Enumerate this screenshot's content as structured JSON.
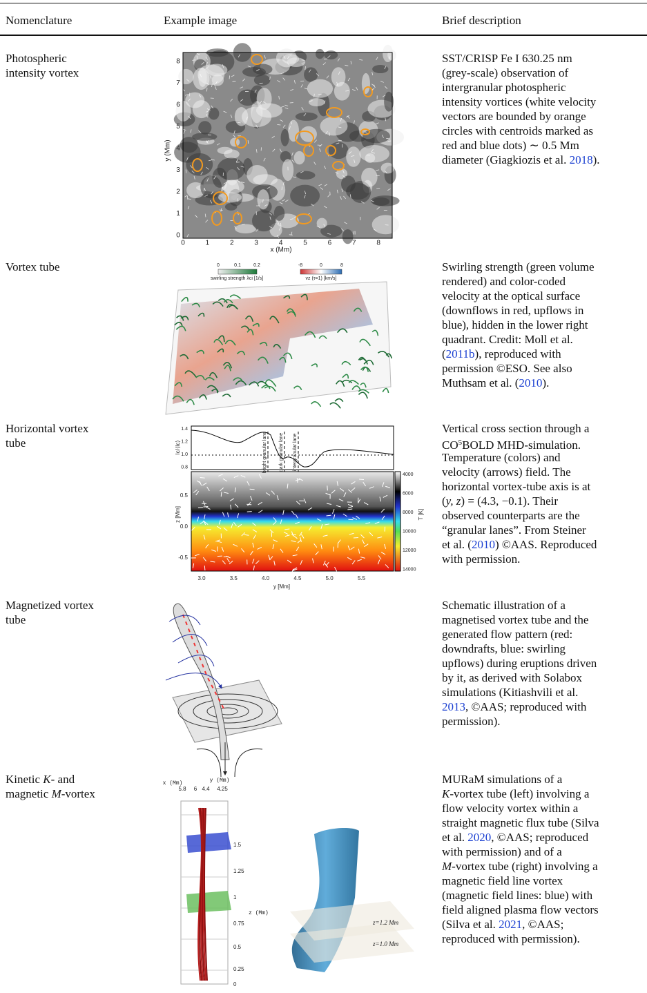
{
  "table": {
    "header": [
      "Nomenclature",
      "Example image",
      "Brief description"
    ],
    "rows": [
      {
        "nomenclature": [
          [
            "Photospheric"
          ],
          [
            "intensity vortex"
          ]
        ],
        "description": [
          [
            "SST/CRISP Fe I 630.25 nm"
          ],
          [
            "(grey-scale) observation of"
          ],
          [
            "intergranular photospheric"
          ],
          [
            "intensity vortices (white velocity"
          ],
          [
            "vectors are bounded by orange"
          ],
          [
            "circles with centroids marked as"
          ],
          [
            "red and blue dots) ∼ 0.5 Mm"
          ],
          [
            "diameter (Giagkiozis et al. ",
            {
              "text": "2018",
              "style": "link"
            },
            ")."
          ]
        ]
      },
      {
        "nomenclature": [
          [
            "Vortex tube"
          ]
        ],
        "description": [
          [
            "Swirling strength (green volume"
          ],
          [
            "rendered) and color-coded"
          ],
          [
            "velocity at the optical surface"
          ],
          [
            "(downflows in red, upflows in"
          ],
          [
            "blue), hidden in the lower right"
          ],
          [
            "quadrant. Credit: Moll et al."
          ],
          [
            "(",
            {
              "text": "2011b",
              "style": "link"
            },
            "), reproduced with"
          ],
          [
            "permission ©ESO. See also"
          ],
          [
            "Muthsam et al. (",
            {
              "text": "2010",
              "style": "link"
            },
            ")."
          ]
        ]
      },
      {
        "nomenclature": [
          [
            "Horizontal vortex"
          ],
          [
            "tube"
          ]
        ],
        "description": [
          [
            "Vertical cross section through a"
          ],
          [
            "CO",
            {
              "text": "5",
              "style": "sup"
            },
            "BOLD MHD-simulation."
          ],
          [
            "Temperature (colors) and"
          ],
          [
            "velocity (arrows) field. The"
          ],
          [
            "horizontal vortex-tube axis is at"
          ],
          [
            "(",
            {
              "text": "y, z",
              "style": "italic"
            },
            ") = (4.3, −0.1). Their"
          ],
          [
            "observed counterparts are the"
          ],
          [
            "“granular lanes”. From Steiner"
          ],
          [
            "et al. (",
            {
              "text": "2010",
              "style": "link"
            },
            ") ©AAS. Reproduced"
          ],
          [
            "with permission."
          ]
        ]
      },
      {
        "nomenclature": [
          [
            "Magnetized vortex"
          ],
          [
            "tube"
          ]
        ],
        "description": [
          [
            "Schematic illustration of a"
          ],
          [
            "magnetised vortex tube and the"
          ],
          [
            "generated flow pattern (red:"
          ],
          [
            "downdrafts, blue: swirling"
          ],
          [
            "upflows) during eruptions driven"
          ],
          [
            "by it, as derived with Solabox"
          ],
          [
            "simulations (Kitiashvili et al."
          ],
          [
            {
              "text": "2013",
              "style": "link"
            },
            ", ©AAS; reproduced with"
          ],
          [
            "permission)."
          ]
        ]
      },
      {
        "nomenclature": [
          [
            "Kinetic ",
            {
              "text": "K",
              "style": "italic"
            },
            "- and"
          ],
          [
            "magnetic ",
            {
              "text": "M",
              "style": "italic"
            },
            "-vortex"
          ]
        ],
        "description": [
          [
            "MURaM simulations of a"
          ],
          [
            {
              "text": "K",
              "style": "italic"
            },
            "-vortex tube (left) involving a"
          ],
          [
            "flow velocity vortex within a"
          ],
          [
            "straight magnetic flux tube (Silva"
          ],
          [
            "et al. ",
            {
              "text": "2020",
              "style": "link"
            },
            ", ©AAS; reproduced"
          ],
          [
            "with permission) and of a"
          ],
          [
            {
              "text": "M",
              "style": "italic"
            },
            "-vortex tube (right) involving a"
          ],
          [
            "magnetic field line vortex"
          ],
          [
            "(magnetic field lines: blue) with"
          ],
          [
            "field aligned plasma flow vectors"
          ],
          [
            "(Silva et al. ",
            {
              "text": "2021",
              "style": "link"
            },
            ", ©AAS;"
          ],
          [
            "reproduced with permission)."
          ]
        ]
      }
    ]
  },
  "figures": {
    "intensity_vortex": {
      "x_label": "x (Mm)",
      "y_label": "y (Mm)",
      "x_ticks": [
        "0",
        "1",
        "2",
        "3",
        "4",
        "5",
        "6",
        "7",
        "8"
      ],
      "y_ticks": [
        "0",
        "1",
        "2",
        "3",
        "4",
        "5",
        "6",
        "7",
        "8"
      ]
    },
    "vortex_tube": {
      "swirl_ticks": [
        "0",
        "0.1",
        "0.2"
      ],
      "swirl_label": "swirling strength λci [1/s]",
      "vz_ticks": [
        "-8",
        "0",
        "8"
      ],
      "vz_label": "vz (τ=1) [km/s]"
    },
    "horizontal": {
      "top_label": "Ic/⟨Ic⟩",
      "top_ticks": [
        "1.4",
        "1.2",
        "1.0",
        "0.8"
      ],
      "annotations": [
        "bright granular lane",
        "dark granular lane",
        "intergranular lane"
      ],
      "z_label": "z [Mm]",
      "z_ticks": [
        "0.5",
        "0.0",
        "-0.5"
      ],
      "y_label": "y [Mm]",
      "y_ticks": [
        "3.0",
        "3.5",
        "4.0",
        "4.5",
        "5.0",
        "5.5"
      ],
      "t_label": "T [K]",
      "t_ticks": [
        "4000",
        "6000",
        "8000",
        "10000",
        "12000",
        "14000"
      ]
    },
    "mvortex": {
      "x_label": "x (Mm)",
      "y_label": "y (Mm)",
      "top_ticks": [
        "5.8",
        "6",
        "4.4",
        "4.25"
      ],
      "z_label": "z (Mm)",
      "z_ticks": [
        "1.5",
        "1.25",
        "1",
        "0.75",
        "0.5",
        "0.25",
        "0"
      ],
      "planes": [
        "z=1.2 Mm",
        "z=1.0 Mm"
      ]
    }
  }
}
